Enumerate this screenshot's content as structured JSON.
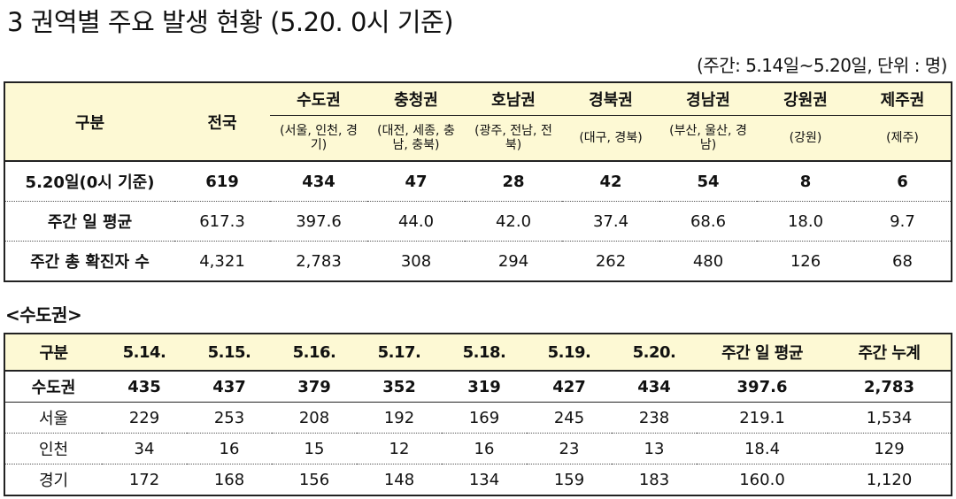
{
  "title": "3  권역별 주요 발생 현황 (5.20. 0시 기준)",
  "period_note": "(주간: 5.14일~5.20일, 단위 : 명)",
  "table1": {
    "col_label": "구분",
    "nation_label": "전국",
    "regions": [
      {
        "name": "수도권",
        "sub": "(서울, 인천, 경기)"
      },
      {
        "name": "충청권",
        "sub": "(대전, 세종, 충남, 충북)"
      },
      {
        "name": "호남권",
        "sub": "(광주, 전남, 전북)"
      },
      {
        "name": "경북권",
        "sub": "(대구, 경북)"
      },
      {
        "name": "경남권",
        "sub": "(부산, 울산, 경남)"
      },
      {
        "name": "강원권",
        "sub": "(강원)"
      },
      {
        "name": "제주권",
        "sub": "(제주)"
      }
    ],
    "rows": [
      {
        "label": "5.20일(0시 기준)",
        "values": [
          "619",
          "434",
          "47",
          "28",
          "42",
          "54",
          "8",
          "6"
        ]
      },
      {
        "label": "주간 일 평균",
        "values": [
          "617.3",
          "397.6",
          "44.0",
          "42.0",
          "37.4",
          "68.6",
          "18.0",
          "9.7"
        ]
      },
      {
        "label": "주간 총 확진자 수",
        "values": [
          "4,321",
          "2,783",
          "308",
          "294",
          "262",
          "480",
          "126",
          "68"
        ]
      }
    ]
  },
  "section_title": "<수도권>",
  "table2": {
    "headers": [
      "구분",
      "5.14.",
      "5.15.",
      "5.16.",
      "5.17.",
      "5.18.",
      "5.19.",
      "5.20.",
      "주간 일 평균",
      "주간 누계"
    ],
    "rows": [
      {
        "label": "수도권",
        "values": [
          "435",
          "437",
          "379",
          "352",
          "319",
          "427",
          "434",
          "397.6",
          "2,783"
        ]
      },
      {
        "label": "서울",
        "values": [
          "229",
          "253",
          "208",
          "192",
          "169",
          "245",
          "238",
          "219.1",
          "1,534"
        ]
      },
      {
        "label": "인천",
        "values": [
          "34",
          "16",
          "15",
          "12",
          "16",
          "23",
          "13",
          "18.4",
          "129"
        ]
      },
      {
        "label": "경기",
        "values": [
          "172",
          "168",
          "156",
          "148",
          "134",
          "159",
          "183",
          "160.0",
          "1,120"
        ]
      }
    ]
  }
}
